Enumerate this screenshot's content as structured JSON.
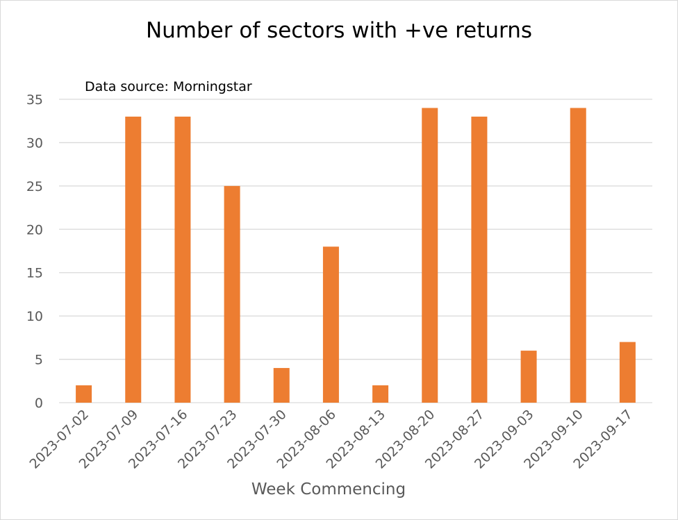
{
  "chart_data": {
    "type": "bar",
    "title": "Number of sectors with +ve returns",
    "annotation": "Data source: Morningstar",
    "xlabel": "Week Commencing",
    "ylabel": "",
    "categories": [
      "2023-07-02",
      "2023-07-09",
      "2023-07-16",
      "2023-07-23",
      "2023-07-30",
      "2023-08-06",
      "2023-08-13",
      "2023-08-20",
      "2023-08-27",
      "2023-09-03",
      "2023-09-10",
      "2023-09-17"
    ],
    "values": [
      2,
      33,
      33,
      25,
      4,
      18,
      2,
      34,
      33,
      6,
      34,
      7
    ],
    "ylim": [
      0,
      35
    ],
    "yticks": [
      "0",
      "5",
      "10",
      "15",
      "20",
      "25",
      "30",
      "35"
    ],
    "grid": true,
    "legend": "none",
    "bar_color": "#ED7D31",
    "grid_color": "#d9d9d9"
  }
}
